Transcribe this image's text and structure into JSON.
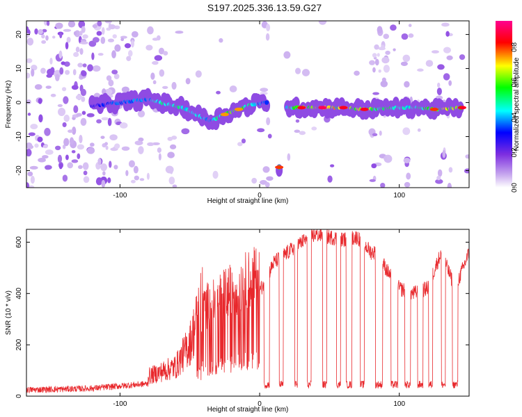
{
  "figure_title": "S197.2025.336.13.59.G27",
  "chart_data": [
    {
      "type": "heatmap",
      "title": "S197.2025.336.13.59.G27",
      "xlabel": "Height of straight line (km)",
      "ylabel": "Frequency (Hz)",
      "xlim": [
        -167,
        150
      ],
      "ylim": [
        -25,
        24
      ],
      "x_ticks": [
        -100,
        0,
        100
      ],
      "y_ticks": [
        -20,
        -10,
        0,
        10,
        20
      ],
      "x_tick_labels": [
        "-100",
        "0",
        "100"
      ],
      "y_tick_labels": [
        "-20",
        "-10",
        "0",
        "10",
        "20"
      ],
      "colorbar": {
        "label": "Normalized spectral amplitude",
        "range": [
          0,
          0.95
        ],
        "ticks": [
          0,
          0.2,
          0.4,
          0.6,
          0.8
        ],
        "tick_labels": [
          "0.0",
          "0.2",
          "0.4",
          "0.6",
          "0.8"
        ],
        "colors": [
          "#ffffff",
          "#c6a6ee",
          "#7d2ee0",
          "#0000ff",
          "#00ffff",
          "#00ff00",
          "#ffff00",
          "#ff0000",
          "#ff0090"
        ]
      },
      "ridge": [
        {
          "x": -120,
          "f": -1,
          "amp": 0.35
        },
        {
          "x": -100,
          "f": 0,
          "amp": 0.45
        },
        {
          "x": -80,
          "f": 1,
          "amp": 0.5
        },
        {
          "x": -66,
          "f": -0.5,
          "amp": 0.6
        },
        {
          "x": -55,
          "f": -1.5,
          "amp": 0.6
        },
        {
          "x": -45,
          "f": -3.5,
          "amp": 0.55
        },
        {
          "x": -35,
          "f": -5.5,
          "amp": 0.5
        },
        {
          "x": -25,
          "f": -3.5,
          "amp": 0.7
        },
        {
          "x": -15,
          "f": -2,
          "amp": 0.7
        },
        {
          "x": -5,
          "f": -0.5,
          "amp": 0.6
        },
        {
          "x": 5,
          "f": 0,
          "amp": 0.4
        },
        {
          "x": 14,
          "f": -19,
          "amp": 0.75
        },
        {
          "x": 20,
          "f": -1.5,
          "amp": 0.6
        },
        {
          "x": 30,
          "f": -1.5,
          "amp": 0.8
        },
        {
          "x": 45,
          "f": -1.5,
          "amp": 0.85
        },
        {
          "x": 60,
          "f": -1.5,
          "amp": 0.8
        },
        {
          "x": 75,
          "f": -2,
          "amp": 0.8
        },
        {
          "x": 100,
          "f": -1.5,
          "amp": 0.55
        },
        {
          "x": 115,
          "f": -1.5,
          "amp": 0.6
        },
        {
          "x": 125,
          "f": -2,
          "amp": 0.75
        },
        {
          "x": 145,
          "f": -1.5,
          "amp": 0.8
        }
      ]
    },
    {
      "type": "line",
      "xlabel": "Height of straight line (km)",
      "ylabel": "SNR (10 * v/v)",
      "xlim": [
        -167,
        150
      ],
      "ylim": [
        0,
        650
      ],
      "x_ticks": [
        -100,
        0,
        100
      ],
      "y_ticks": [
        0,
        200,
        400,
        600
      ],
      "x_tick_labels": [
        "-100",
        "0",
        "100"
      ],
      "y_tick_labels": [
        "0",
        "200",
        "400",
        "600"
      ],
      "series": [
        {
          "name": "SNR",
          "color": "#e8282c",
          "envelope_x": [
            -167,
            -140,
            -120,
            -100,
            -80,
            -60,
            -50,
            -40,
            -30,
            -20,
            -10,
            0,
            5,
            10,
            20,
            30,
            40,
            50,
            60,
            70,
            80,
            85,
            90,
            100,
            110,
            120,
            130,
            140,
            150
          ],
          "envelope_y": [
            20,
            25,
            30,
            45,
            60,
            90,
            160,
            300,
            330,
            360,
            390,
            410,
            460,
            520,
            560,
            600,
            630,
            620,
            610,
            620,
            560,
            560,
            500,
            420,
            400,
            420,
            560,
            420,
            560
          ],
          "dropouts": [
            [
              3,
              7
            ],
            [
              14,
              17
            ],
            [
              25,
              27
            ],
            [
              34,
              37
            ],
            [
              45,
              48
            ],
            [
              55,
              58
            ],
            [
              62,
              66
            ],
            [
              72,
              75
            ],
            [
              83,
              88
            ],
            [
              94,
              99
            ],
            [
              104,
              108
            ],
            [
              113,
              117
            ],
            [
              121,
              124
            ],
            [
              130,
              133
            ],
            [
              138,
              142
            ]
          ],
          "dropout_level": 45
        }
      ]
    }
  ]
}
